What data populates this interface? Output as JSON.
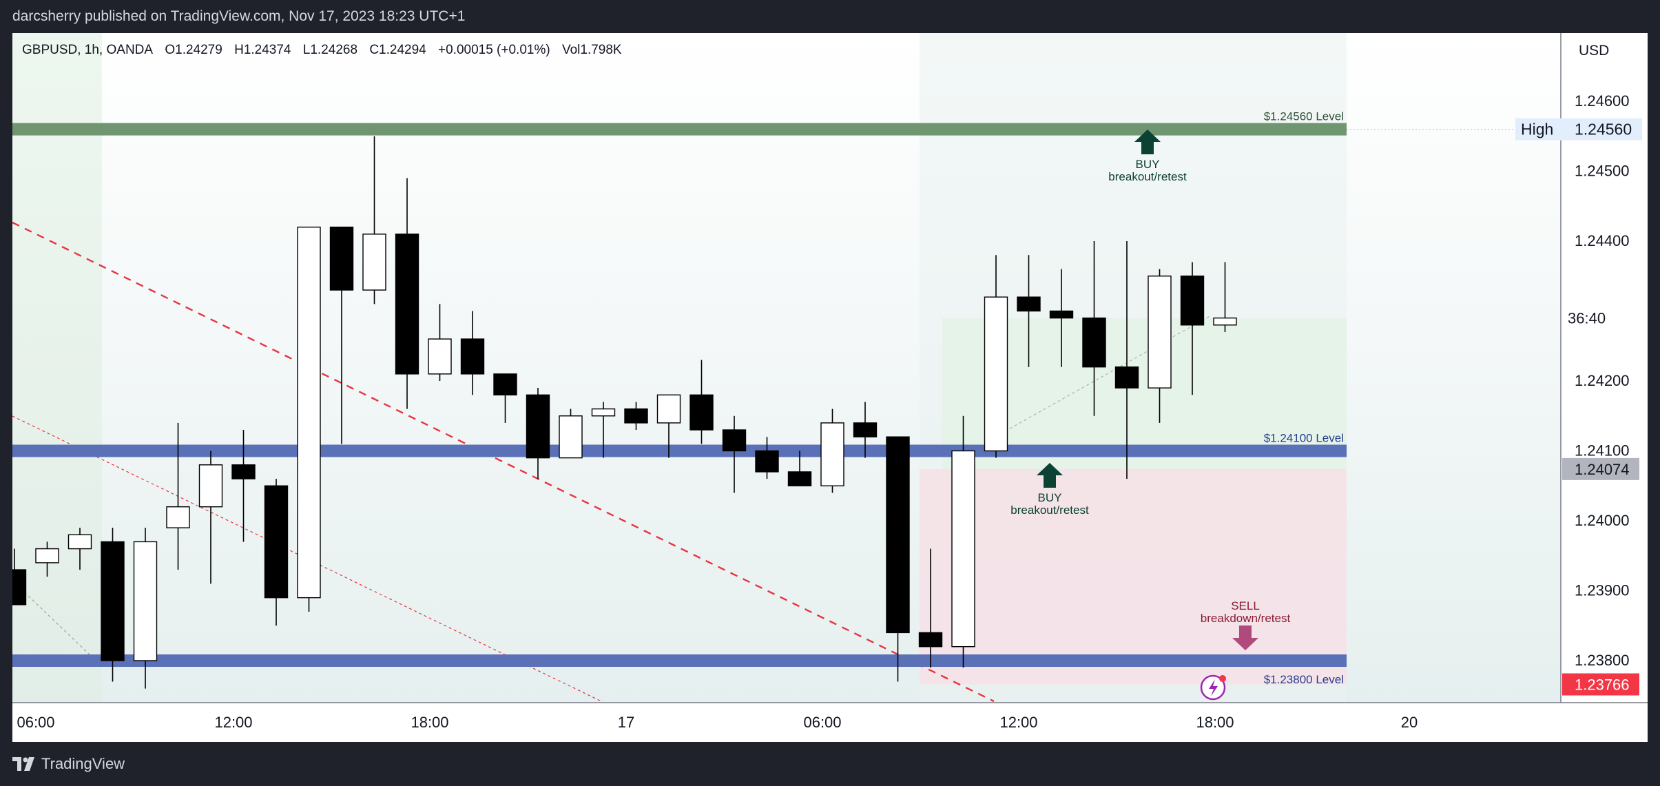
{
  "publish_line": "darcsherry published on TradingView.com, Nov 17, 2023 18:23 UTC+1",
  "footer_brand": "TradingView",
  "legend": {
    "symbol": "GBPUSD, 1h, OANDA",
    "open": "O1.24279",
    "high": "H1.24374",
    "low": "L1.24268",
    "close": "C1.24294",
    "change": "+0.00015 (+0.01%)",
    "volume": "Vol1.798K"
  },
  "currency": "USD",
  "price_axis": {
    "ticks": [
      "1.24600",
      "1.24500",
      "1.24400",
      "1.24200",
      "1.24100",
      "1.24000",
      "1.23900",
      "1.23800"
    ],
    "high_label": "High",
    "high_value": "1.24560",
    "countdown": "36:40",
    "grey_value": "1.24074",
    "last_price": "1.23766"
  },
  "time_axis": [
    "06:00",
    "12:00",
    "18:00",
    "17",
    "06:00",
    "12:00",
    "18:00",
    "20"
  ],
  "levels": [
    {
      "price": 1.2456,
      "label": "$1.24560 Level",
      "color": "#6f9670"
    },
    {
      "price": 1.241,
      "label": "$1.24100 Level",
      "color": "#5a70b7"
    },
    {
      "price": 1.238,
      "label": "$1.23800 Level",
      "color": "#5a70b7"
    }
  ],
  "annotations": [
    {
      "word": "BUY",
      "sub": "breakout/retest"
    },
    {
      "word": "BUY",
      "sub": "breakout/retest"
    },
    {
      "word": "SELL",
      "sub": "breakdown/retest"
    }
  ],
  "chart_data": {
    "type": "candlestick",
    "x_labels": [
      "06:00",
      "12:00",
      "18:00",
      "17",
      "06:00",
      "12:00",
      "18:00",
      "20"
    ],
    "candles": [
      {
        "o": 1.2393,
        "h": 1.2396,
        "l": 1.2388,
        "c": 1.2388
      },
      {
        "o": 1.2394,
        "h": 1.2397,
        "l": 1.2392,
        "c": 1.2396
      },
      {
        "o": 1.2396,
        "h": 1.2399,
        "l": 1.2393,
        "c": 1.2398
      },
      {
        "o": 1.2397,
        "h": 1.2399,
        "l": 1.2377,
        "c": 1.238
      },
      {
        "o": 1.238,
        "h": 1.2399,
        "l": 1.2376,
        "c": 1.2397
      },
      {
        "o": 1.2399,
        "h": 1.2414,
        "l": 1.2393,
        "c": 1.2402
      },
      {
        "o": 1.2402,
        "h": 1.241,
        "l": 1.2391,
        "c": 1.2408
      },
      {
        "o": 1.2408,
        "h": 1.2413,
        "l": 1.2397,
        "c": 1.2406
      },
      {
        "o": 1.2405,
        "h": 1.2406,
        "l": 1.2385,
        "c": 1.2389
      },
      {
        "o": 1.2389,
        "h": 1.2442,
        "l": 1.2387,
        "c": 1.2442
      },
      {
        "o": 1.2442,
        "h": 1.2442,
        "l": 1.2411,
        "c": 1.2433
      },
      {
        "o": 1.2433,
        "h": 1.2455,
        "l": 1.2431,
        "c": 1.2441
      },
      {
        "o": 1.2441,
        "h": 1.2449,
        "l": 1.2416,
        "c": 1.2421
      },
      {
        "o": 1.2421,
        "h": 1.2431,
        "l": 1.242,
        "c": 1.2426
      },
      {
        "o": 1.2426,
        "h": 1.243,
        "l": 1.2418,
        "c": 1.2421
      },
      {
        "o": 1.2421,
        "h": 1.2421,
        "l": 1.2414,
        "c": 1.2418
      },
      {
        "o": 1.2418,
        "h": 1.2419,
        "l": 1.2406,
        "c": 1.2409
      },
      {
        "o": 1.2409,
        "h": 1.2416,
        "l": 1.2409,
        "c": 1.2415
      },
      {
        "o": 1.2415,
        "h": 1.2417,
        "l": 1.2409,
        "c": 1.2416
      },
      {
        "o": 1.2416,
        "h": 1.2417,
        "l": 1.2413,
        "c": 1.2414
      },
      {
        "o": 1.2414,
        "h": 1.2418,
        "l": 1.2409,
        "c": 1.2418
      },
      {
        "o": 1.2418,
        "h": 1.2423,
        "l": 1.2411,
        "c": 1.2413
      },
      {
        "o": 1.2413,
        "h": 1.2415,
        "l": 1.2404,
        "c": 1.241
      },
      {
        "o": 1.241,
        "h": 1.2412,
        "l": 1.2406,
        "c": 1.2407
      },
      {
        "o": 1.2407,
        "h": 1.241,
        "l": 1.2405,
        "c": 1.2405
      },
      {
        "o": 1.2405,
        "h": 1.2416,
        "l": 1.2404,
        "c": 1.2414
      },
      {
        "o": 1.2414,
        "h": 1.2417,
        "l": 1.2409,
        "c": 1.2412
      },
      {
        "o": 1.2412,
        "h": 1.2412,
        "l": 1.2377,
        "c": 1.2384
      },
      {
        "o": 1.2384,
        "h": 1.2396,
        "l": 1.2379,
        "c": 1.2382
      },
      {
        "o": 1.2382,
        "h": 1.2415,
        "l": 1.2379,
        "c": 1.241
      },
      {
        "o": 1.241,
        "h": 1.2438,
        "l": 1.2409,
        "c": 1.2432
      },
      {
        "o": 1.2432,
        "h": 1.2438,
        "l": 1.2422,
        "c": 1.243
      },
      {
        "o": 1.243,
        "h": 1.2436,
        "l": 1.2422,
        "c": 1.2429
      },
      {
        "o": 1.2429,
        "h": 1.244,
        "l": 1.2415,
        "c": 1.2422
      },
      {
        "o": 1.2422,
        "h": 1.244,
        "l": 1.2406,
        "c": 1.2419
      },
      {
        "o": 1.2419,
        "h": 1.2436,
        "l": 1.2414,
        "c": 1.2435
      },
      {
        "o": 1.2435,
        "h": 1.2437,
        "l": 1.2418,
        "c": 1.2428
      },
      {
        "o": 1.2428,
        "h": 1.2437,
        "l": 1.2427,
        "c": 1.2429
      }
    ]
  },
  "colors": {
    "bull_body": "#ffffff",
    "bear_body": "#000000",
    "wick": "#000000",
    "trendline": "#e8343f",
    "buy_arrow": "#0b4234",
    "sell_arrow": "#b14a7c",
    "buy_zone": "#e3f2e6",
    "sell_zone": "#f6e1e6",
    "last_price_bg": "#f23645",
    "grey_tag_bg": "#b2b5be"
  }
}
